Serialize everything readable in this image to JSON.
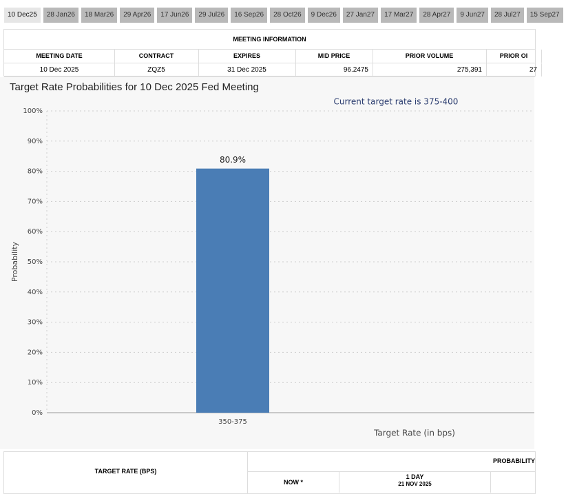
{
  "tabs": [
    "10 Dec25",
    "28 Jan26",
    "18 Mar26",
    "29 Apr26",
    "17 Jun26",
    "29 Jul26",
    "16 Sep26",
    "28 Oct26",
    "9 Dec26",
    "27 Jan27",
    "17 Mar27",
    "28 Apr27",
    "9 Jun27",
    "28 Jul27",
    "15 Sep27"
  ],
  "meeting_info": {
    "title": "MEETING INFORMATION",
    "headers": [
      "MEETING DATE",
      "CONTRACT",
      "EXPIRES",
      "MID PRICE",
      "PRIOR VOLUME",
      "PRIOR OI"
    ],
    "row": [
      "10 Dec 2025",
      "ZQZ5",
      "31 Dec 2025",
      "96.2475",
      "275,391",
      "27"
    ]
  },
  "chart_data": {
    "type": "bar",
    "title": "Target Rate Probabilities for 10 Dec 2025 Fed Meeting",
    "annotation": "Current target rate is 375-400",
    "x_label": "Target Rate (in bps)",
    "y_label": "Probability",
    "categories": [
      "350-375"
    ],
    "values": [
      80.9
    ],
    "value_labels": [
      "80.9%"
    ],
    "color": "#4a7db5",
    "ylim": [
      0,
      100
    ],
    "yticks": [
      {
        "value": 0,
        "label": "0%"
      },
      {
        "value": 10,
        "label": "10%"
      },
      {
        "value": 20,
        "label": "20%"
      },
      {
        "value": 30,
        "label": "30%"
      },
      {
        "value": 40,
        "label": "40%"
      },
      {
        "value": 50,
        "label": "50%"
      },
      {
        "value": 60,
        "label": "60%"
      },
      {
        "value": 70,
        "label": "70%"
      },
      {
        "value": 80,
        "label": "80%"
      },
      {
        "value": 90,
        "label": "90%"
      },
      {
        "value": 100,
        "label": "100%"
      }
    ],
    "grid": true
  },
  "probability_table": {
    "left_header": "TARGET RATE (BPS)",
    "right_header": "PROBABILITY",
    "now": "NOW *",
    "day_label": "1 DAY",
    "day_date": "21 NOV 2025"
  }
}
